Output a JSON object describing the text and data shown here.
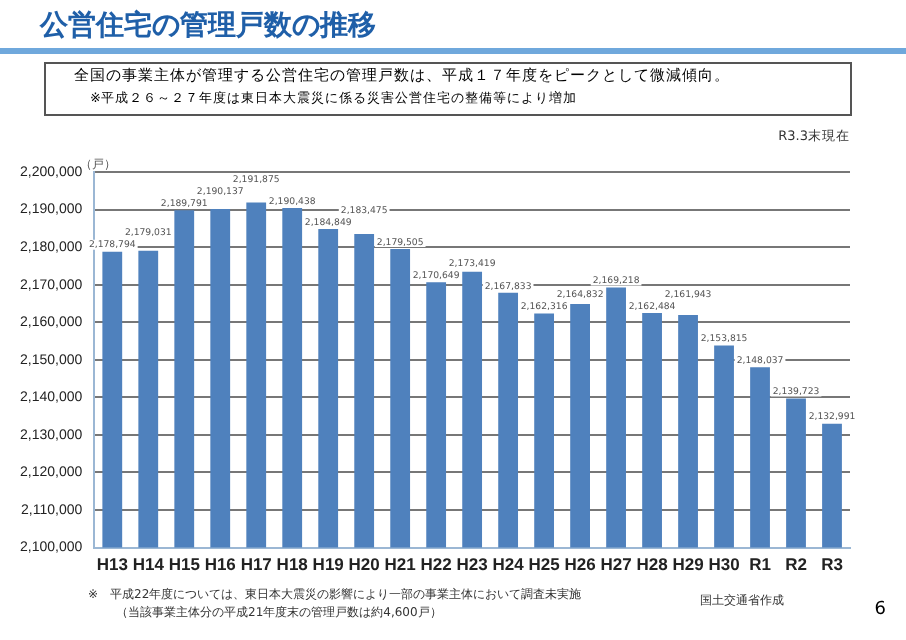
{
  "chart_data": {
    "type": "bar",
    "title": "公営住宅の管理戸数の推移",
    "subtitle": "全国の事業主体が管理する公営住宅の管理戸数は、平成１７年度をピークとして微減傾向。",
    "ylabel": "（戸）",
    "annotations": [
      "※平成２６～２７年度は東日本大震災に係る災害公営住宅の整備等により増加",
      "R3.3末現在",
      "※　平成22年度については、東日本大震災の影響により一部の事業主体において調査未実施",
      "（当該事業主体分の平成21年度末の管理戸数は約4,600戸）",
      "国土交通省作成",
      "6"
    ],
    "categories": [
      "H13",
      "H14",
      "H15",
      "H16",
      "H17",
      "H18",
      "H19",
      "H20",
      "H21",
      "H22",
      "H23",
      "H24",
      "H25",
      "H26",
      "H27",
      "H28",
      "H29",
      "H30",
      "R1",
      "R2",
      "R3"
    ],
    "values": [
      2178794,
      2179031,
      2189791,
      2190137,
      2191875,
      2190438,
      2184849,
      2183475,
      2179505,
      2170649,
      2173419,
      2167833,
      2162316,
      2164832,
      2169218,
      2162484,
      2161943,
      2153815,
      2148037,
      2139723,
      2132991
    ],
    "value_labels": [
      "2,178,794",
      "2,179,031",
      "2,189,791",
      "2,190,137",
      "2,191,875",
      "2,190,438",
      "2,184,849",
      "2,183,475",
      "2,179,505",
      "2,170,649",
      "2,173,419",
      "2,167,833",
      "2,162,316",
      "2,164,832",
      "2,169,218",
      "2,162,484",
      "2,161,943",
      "2,153,815",
      "2,148,037",
      "2,139,723",
      "2,132,991"
    ],
    "color": "#4f81bd",
    "ylim": [
      2100000,
      2200000
    ],
    "yticks": [
      {
        "value": 2100000,
        "label": "2,100,000"
      },
      {
        "value": 2110000,
        "label": "2,110,000"
      },
      {
        "value": 2120000,
        "label": "2,120,000"
      },
      {
        "value": 2130000,
        "label": "2,130,000"
      },
      {
        "value": 2140000,
        "label": "2,140,000"
      },
      {
        "value": 2150000,
        "label": "2,150,000"
      },
      {
        "value": 2160000,
        "label": "2,160,000"
      },
      {
        "value": 2170000,
        "label": "2,170,000"
      },
      {
        "value": 2180000,
        "label": "2,180,000"
      },
      {
        "value": 2190000,
        "label": "2,190,000"
      },
      {
        "value": 2200000,
        "label": "2,200,000"
      }
    ],
    "grid": "y",
    "legend": false,
    "data_labels": true
  }
}
